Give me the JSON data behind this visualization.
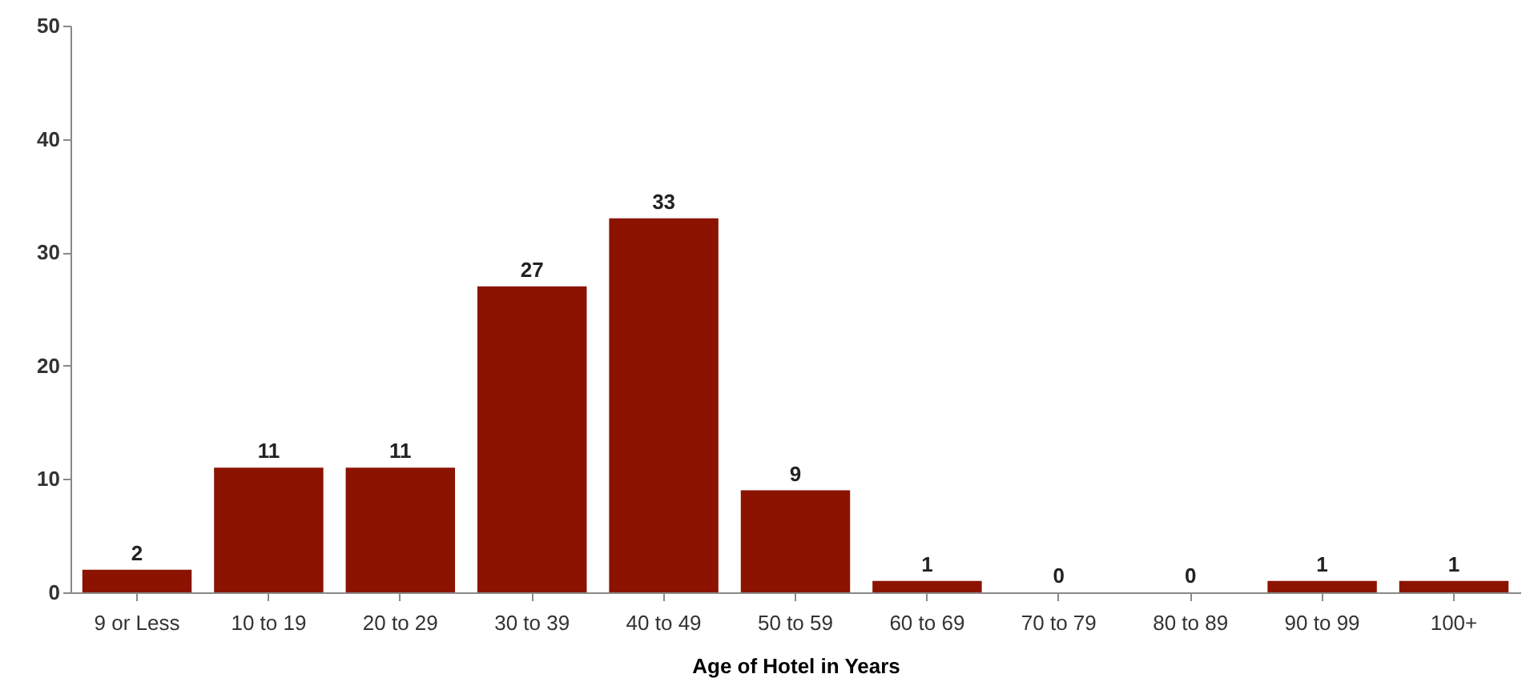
{
  "chart_data": {
    "type": "bar",
    "xlabel": "Age of Hotel in Years",
    "categories": [
      "9 or Less",
      "10 to 19",
      "20 to 29",
      "30 to 39",
      "40 to 49",
      "50 to 59",
      "60 to 69",
      "70 to 79",
      "80 to 89",
      "90 to 99",
      "100+"
    ],
    "values": [
      2,
      11,
      11,
      27,
      33,
      9,
      1,
      0,
      0,
      1,
      1
    ],
    "color": "#8b1300",
    "ylim": [
      0,
      50
    ],
    "yticks": [
      0,
      10,
      20,
      30,
      40,
      50
    ],
    "grid": false,
    "data_labels": true
  }
}
